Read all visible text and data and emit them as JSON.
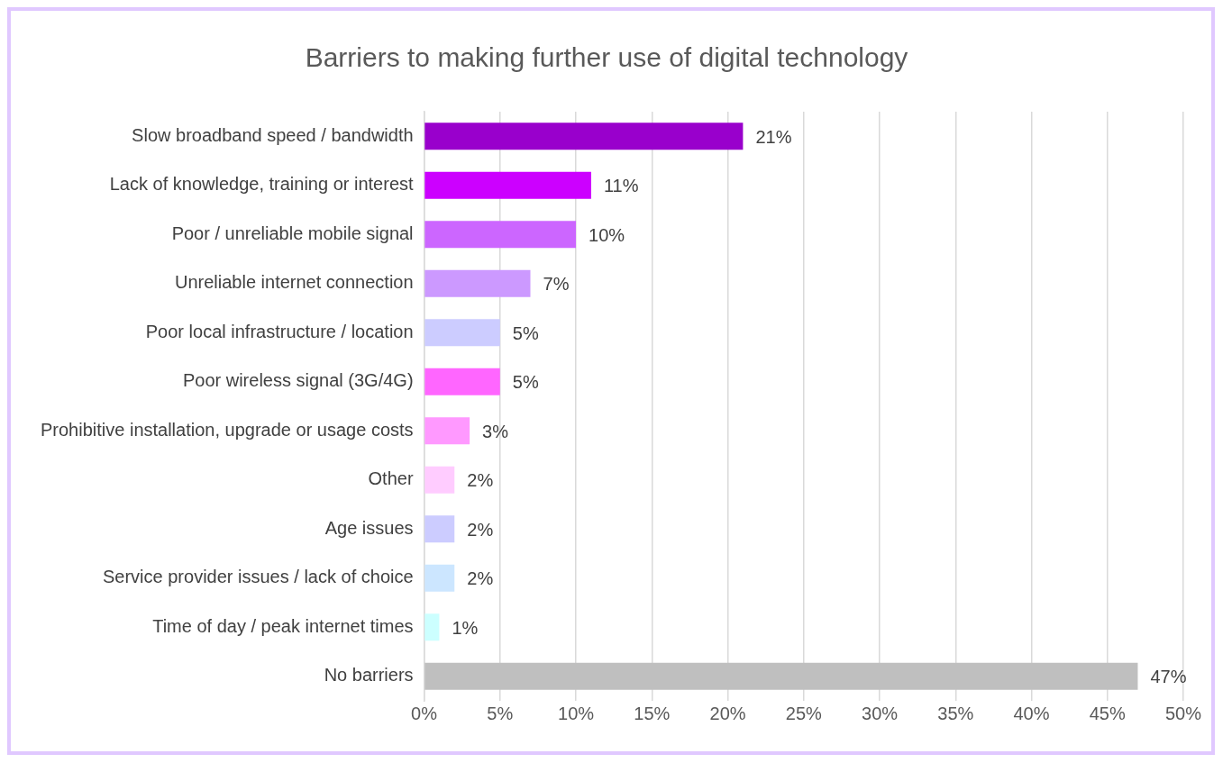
{
  "chart_data": {
    "type": "bar",
    "orientation": "horizontal",
    "title": "Barriers to making further use of digital technology",
    "categories": [
      "Slow broadband speed / bandwidth",
      "Lack of knowledge, training or interest",
      "Poor / unreliable mobile signal",
      "Unreliable internet connection",
      "Poor local infrastructure / location",
      "Poor wireless signal (3G/4G)",
      "Prohibitive installation, upgrade or usage costs",
      "Other",
      "Age issues",
      "Service provider issues / lack of choice",
      "Time of day / peak internet times",
      "No barriers"
    ],
    "values": [
      21,
      11,
      10,
      7,
      5,
      5,
      3,
      2,
      2,
      2,
      1,
      47
    ],
    "value_labels": [
      "21%",
      "11%",
      "10%",
      "7%",
      "5%",
      "5%",
      "3%",
      "2%",
      "2%",
      "2%",
      "1%",
      "47%"
    ],
    "colors": [
      "#9900cc",
      "#cc00ff",
      "#cc66ff",
      "#cc99ff",
      "#ccccff",
      "#ff66ff",
      "#ff99ff",
      "#ffccff",
      "#ccccff",
      "#cce6ff",
      "#ccffff",
      "#bfbfbf"
    ],
    "xlim": [
      0,
      50
    ],
    "xticks": [
      {
        "value": 0,
        "label": "0%"
      },
      {
        "value": 5,
        "label": "5%"
      },
      {
        "value": 10,
        "label": "10%"
      },
      {
        "value": 15,
        "label": "15%"
      },
      {
        "value": 20,
        "label": "20%"
      },
      {
        "value": 25,
        "label": "25%"
      },
      {
        "value": 30,
        "label": "30%"
      },
      {
        "value": 35,
        "label": "35%"
      },
      {
        "value": 40,
        "label": "40%"
      },
      {
        "value": 45,
        "label": "45%"
      },
      {
        "value": 50,
        "label": "50%"
      }
    ],
    "grid": "x",
    "legend": false
  }
}
